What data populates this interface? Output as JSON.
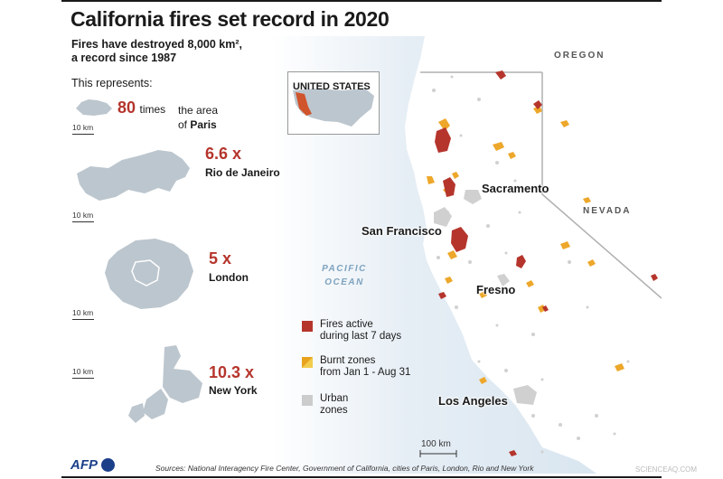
{
  "title": "California fires set record in 2020",
  "subtitle_line1": "Fires have destroyed 8,000 km², ",
  "subtitle_line2": "a record since 1987",
  "represents_label": "This represents:",
  "comparisons": [
    {
      "value": "80",
      "unit_text": "times",
      "text_line1": "the area",
      "text_line2_prefix": "of ",
      "place": "Paris",
      "scale": "10 km"
    },
    {
      "value": "6.6 x",
      "place": "Rio de Janeiro",
      "scale": "10 km"
    },
    {
      "value": "5 x",
      "place": "London",
      "scale": "10 km"
    },
    {
      "value": "10.3 x",
      "place": "New York",
      "scale": "10 km"
    }
  ],
  "inset_label": "UNITED STATES",
  "map_labels": {
    "oregon": "OREGON",
    "nevada": "NEVADA",
    "ocean_line1": "PACIFIC",
    "ocean_line2": "OCEAN",
    "sacramento": "Sacramento",
    "san_francisco": "San Francisco",
    "fresno": "Fresno",
    "los_angeles": "Los Angeles",
    "scale": "100 km"
  },
  "legend": [
    {
      "label_line1": "Fires active",
      "label_line2": "during last 7 days",
      "color": "#b5352c"
    },
    {
      "label_line1": "Burnt zones",
      "label_line2": "from Jan 1 - Aug 31",
      "color": "#e8a21c",
      "color2": "#f2cc4d"
    },
    {
      "label_line1": "Urban",
      "label_line2": "zones",
      "color": "#cccccc"
    }
  ],
  "credit": "AFP",
  "sources": "Sources: National Interagency Fire Center, Government of California, cities of Paris, London, Rio and New York",
  "watermark": "SCIENCEAQ.COM",
  "colors": {
    "accent": "#b5352c",
    "ocean": "#dfeaf2",
    "land": "#ffffff",
    "state_border": "#b0b0b0",
    "silhouette": "#bcc6ce"
  }
}
